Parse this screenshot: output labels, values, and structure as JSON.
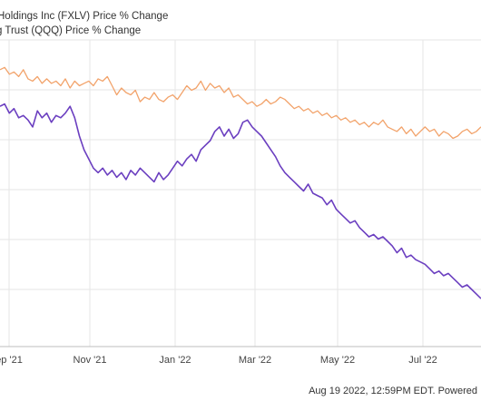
{
  "legend": {
    "series1": "Holdings Inc (FXLV) Price % Change",
    "series2": "g Trust (QQQ) Price % Change"
  },
  "footer": {
    "timestamp": "Aug 19 2022, 12:59PM EDT. Powered"
  },
  "chart_data": {
    "type": "line",
    "title": "",
    "xlabel": "",
    "ylabel": "",
    "x_ticks": [
      "ep '21",
      "Nov '21",
      "Jan '22",
      "Mar '22",
      "May '22",
      "Jul '22"
    ],
    "grid": true,
    "legend_position": "top-left",
    "colors": {
      "qqq": "#F2A36B",
      "fxlv": "#6B3FC0",
      "grid": "#E6E6E6"
    },
    "series": [
      {
        "name": "g Trust (QQQ) Price % Change",
        "values": [
          -23,
          -22,
          -25,
          -24,
          -26,
          -23,
          -27,
          -28,
          -26,
          -29,
          -27,
          -29,
          -28,
          -30,
          -27,
          -31,
          -28,
          -30,
          -29,
          -28,
          -30,
          -27,
          -28,
          -26,
          -30,
          -34,
          -31,
          -33,
          -34,
          -32,
          -37,
          -35,
          -36,
          -33,
          -36,
          -37,
          -35,
          -34,
          -36,
          -33,
          -30,
          -32,
          -31,
          -28,
          -32,
          -29,
          -31,
          -30,
          -33,
          -31,
          -35,
          -34,
          -36,
          -38,
          -37,
          -39,
          -38,
          -36,
          -38,
          -37,
          -35,
          -36,
          -38,
          -40,
          -39,
          -41,
          -40,
          -42,
          -41,
          -43,
          -42,
          -44,
          -43,
          -45,
          -44,
          -46,
          -45,
          -47,
          -46,
          -48,
          -46,
          -47,
          -45,
          -48,
          -49,
          -50,
          -48,
          -51,
          -49,
          -52,
          -50,
          -48,
          -50,
          -49,
          -52,
          -50,
          -51,
          -53,
          -52,
          -50,
          -49,
          -51,
          -50,
          -48
        ]
      },
      {
        "name": "Holdings Inc (FXLV) Price % Change",
        "values": [
          -39,
          -38,
          -42,
          -40,
          -44,
          -43,
          -45,
          -48,
          -41,
          -44,
          -42,
          -46,
          -43,
          -44,
          -42,
          -39,
          -44,
          -52,
          -58,
          -62,
          -66,
          -68,
          -66,
          -69,
          -67,
          -70,
          -68,
          -71,
          -67,
          -69,
          -66,
          -68,
          -70,
          -72,
          -68,
          -71,
          -69,
          -66,
          -63,
          -65,
          -62,
          -60,
          -63,
          -58,
          -56,
          -54,
          -50,
          -48,
          -52,
          -49,
          -53,
          -51,
          -46,
          -45,
          -48,
          -50,
          -52,
          -55,
          -58,
          -61,
          -65,
          -68,
          -70,
          -72,
          -74,
          -76,
          -73,
          -77,
          -78,
          -79,
          -82,
          -80,
          -84,
          -86,
          -88,
          -90,
          -89,
          -92,
          -94,
          -96,
          -95,
          -97,
          -96,
          -98,
          -100,
          -103,
          -101,
          -105,
          -104,
          -106,
          -107,
          -108,
          -110,
          -112,
          -111,
          -113,
          -112,
          -114,
          -116,
          -118,
          -117,
          -119,
          -121,
          -123
        ]
      }
    ]
  }
}
